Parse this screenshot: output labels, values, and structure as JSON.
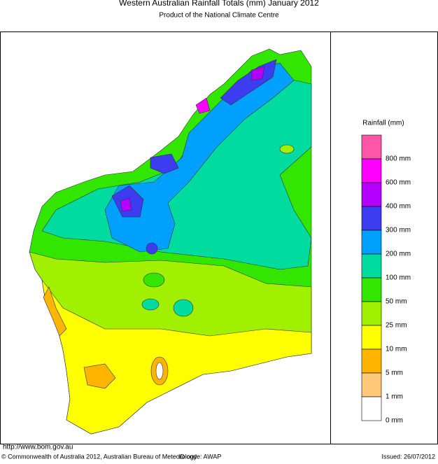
{
  "header": {
    "title": "Western Australian Rainfall Totals (mm) January 2012",
    "subtitle": "Product of the National Climate Centre"
  },
  "legend": {
    "title": "Rainfall (mm)",
    "items": [
      {
        "label": "800 mm",
        "color": "#ff55a8"
      },
      {
        "label": "600 mm",
        "color": "#ff00ff"
      },
      {
        "label": "400 mm",
        "color": "#b400ff"
      },
      {
        "label": "300 mm",
        "color": "#3c3cf0"
      },
      {
        "label": "200 mm",
        "color": "#00a0ff"
      },
      {
        "label": "100 mm",
        "color": "#00dca0"
      },
      {
        "label": "50 mm",
        "color": "#32e600"
      },
      {
        "label": "25 mm",
        "color": "#a0f000"
      },
      {
        "label": "10 mm",
        "color": "#ffff00"
      },
      {
        "label": "5 mm",
        "color": "#ffb400"
      },
      {
        "label": "1 mm",
        "color": "#ffc878"
      },
      {
        "label": "0 mm",
        "color": "#ffffff"
      }
    ]
  },
  "footer": {
    "url": "http://www.bom.gov.au",
    "copyright": "© Commonwealth of Australia 2012, Australian Bureau of Meteorology",
    "id_code": "ID code: AWAP",
    "issued": "Issued: 26/07/2012"
  }
}
